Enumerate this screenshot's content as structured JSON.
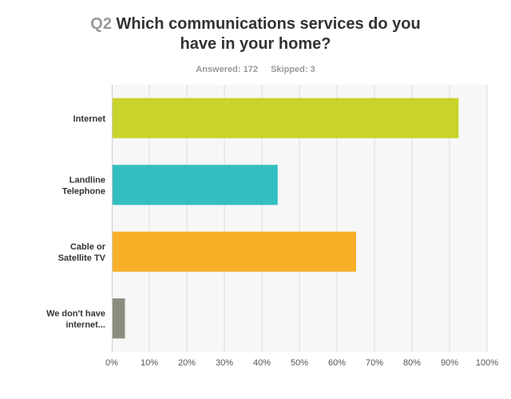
{
  "header": {
    "question_number": "Q2",
    "question_text": "Which communications services do you have in your home?",
    "answered_label": "Answered:",
    "answered_value": "172",
    "skipped_label": "Skipped:",
    "skipped_value": "3"
  },
  "chart_data": {
    "type": "bar",
    "orientation": "horizontal",
    "title": "Which communications services do you have in your home?",
    "xlabel": "",
    "ylabel": "",
    "categories": [
      "Internet",
      "Landline Telephone",
      "Cable or Satellite TV",
      "We don't have internet..."
    ],
    "category_lines": [
      [
        "Internet"
      ],
      [
        "Landline",
        "Telephone"
      ],
      [
        "Cable or",
        "Satellite TV"
      ],
      [
        "We don't have",
        "internet..."
      ]
    ],
    "values": [
      92.4,
      44.2,
      65.1,
      3.5
    ],
    "value_unit": "%",
    "colors": [
      "#c8d32b",
      "#33bec0",
      "#f7b028",
      "#8b8b7f"
    ],
    "xlim": [
      0,
      100
    ],
    "xticks": [
      "0%",
      "10%",
      "20%",
      "30%",
      "40%",
      "50%",
      "60%",
      "70%",
      "80%",
      "90%",
      "100%"
    ],
    "grid": true,
    "legend": "none"
  }
}
